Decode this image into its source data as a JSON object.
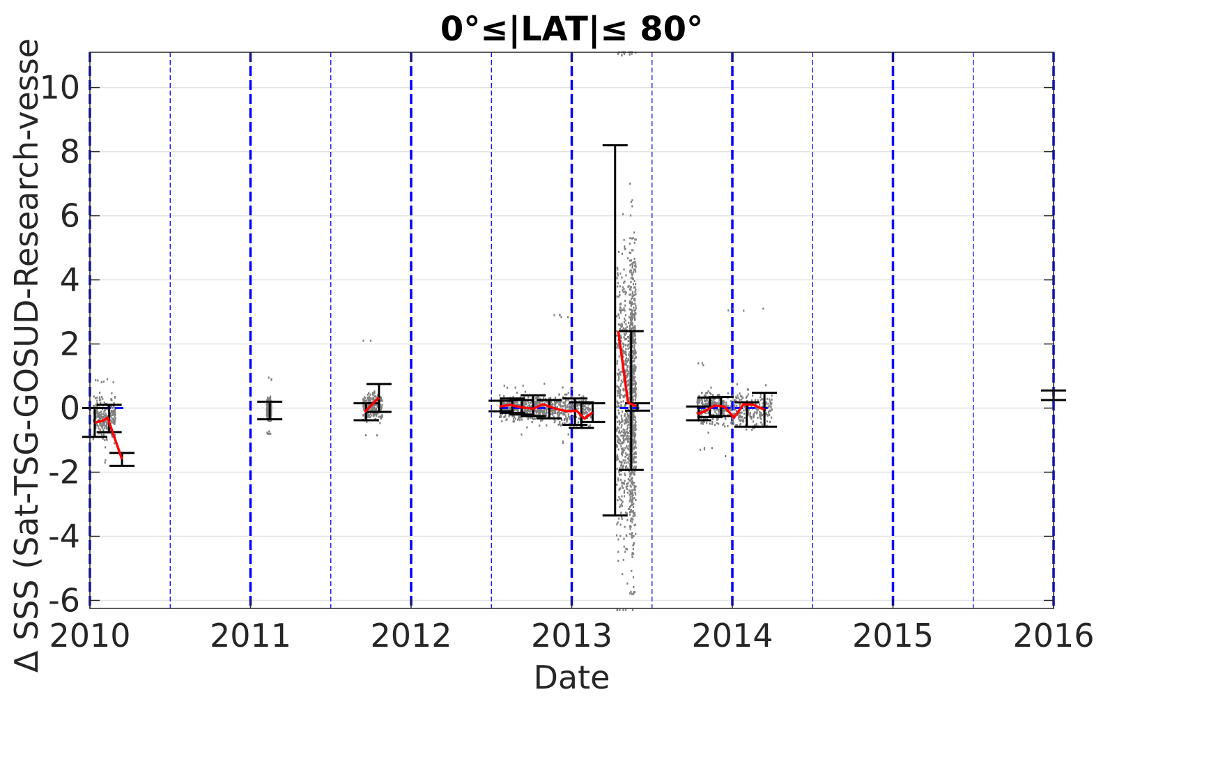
{
  "chart_data": {
    "type": "scatter",
    "title": "0°≤|LAT|≤ 80°",
    "xlabel": "Date",
    "ylabel": "Δ SSS (Sat-TSG-GOSUD-Research-vesse",
    "xlim": [
      2010,
      2016
    ],
    "ylim": [
      -6.25,
      11.1
    ],
    "x_ticks": [
      2010,
      2011,
      2012,
      2013,
      2014,
      2015,
      2016
    ],
    "x_tick_labels": [
      "2010",
      "2011",
      "2012",
      "2013",
      "2014",
      "2015",
      "2016"
    ],
    "y_ticks": [
      -6,
      -4,
      -2,
      0,
      2,
      4,
      6,
      8,
      10
    ],
    "y_tick_labels": [
      "-6",
      "-4",
      "-2",
      "0",
      "2",
      "4",
      "6",
      "8",
      "10"
    ],
    "grid": true,
    "colors": {
      "scatter": "#808080",
      "mean_line": "#ff0000",
      "error_bars": "#000000",
      "year_lines": "#0000ff",
      "grid": "#e3e3e3",
      "zero_line": "#0000ff"
    },
    "vertical_lines_major": [
      2010,
      2011,
      2012,
      2013,
      2014,
      2015,
      2016
    ],
    "vertical_lines_minor": [
      2010.5,
      2011.5,
      2012.5,
      2013.5,
      2014.5,
      2015.5
    ],
    "scatter_clusters": [
      {
        "x": [
          2010.02,
          2010.16
        ],
        "center": -0.3,
        "spread": 0.45,
        "min": -1.7,
        "max": 0.9
      },
      {
        "x": [
          2011.1,
          2011.13
        ],
        "center": -0.05,
        "spread": 0.25,
        "min": -0.8,
        "max": 0.95
      },
      {
        "x": [
          2011.7,
          2011.82
        ],
        "center": 0.05,
        "spread": 0.3,
        "min": -0.85,
        "max": 2.1
      },
      {
        "x": [
          2012.55,
          2012.7
        ],
        "center": 0.0,
        "spread": 0.25,
        "min": -0.9,
        "max": 0.7
      },
      {
        "x": [
          2012.7,
          2012.88
        ],
        "center": 0.0,
        "spread": 0.25,
        "min": -0.6,
        "max": 0.8
      },
      {
        "x": [
          2012.88,
          2013.12
        ],
        "center": -0.05,
        "spread": 0.35,
        "min": -1.1,
        "max": 2.9
      },
      {
        "x": [
          2013.28,
          2013.38
        ],
        "center": 0.3,
        "spread": 3.0,
        "min": -6.3,
        "max": 11.1
      },
      {
        "x": [
          2013.36,
          2013.4
        ],
        "center": 0.5,
        "spread": 3.2,
        "min": -5.8,
        "max": 11.1
      },
      {
        "x": [
          2013.78,
          2013.95
        ],
        "center": 0.0,
        "spread": 0.35,
        "min": -1.3,
        "max": 1.4
      },
      {
        "x": [
          2013.95,
          2014.25
        ],
        "center": -0.05,
        "spread": 0.4,
        "min": -1.5,
        "max": 3.1
      }
    ],
    "mean_series": {
      "x": [
        2010.03,
        2010.08,
        2010.11,
        2010.2,
        null,
        2011.71,
        2011.8,
        null,
        2012.55,
        2012.62,
        2012.68,
        2012.76,
        2012.82,
        2012.9,
        2012.97,
        2013.03,
        2013.08,
        2013.13,
        null,
        2013.29,
        2013.35,
        2013.4,
        null,
        2013.78,
        2013.82,
        2013.89,
        2013.95,
        2014.01,
        2014.07,
        2014.13,
        2014.2
      ],
      "y": [
        -0.45,
        -0.4,
        -0.3,
        -1.6,
        null,
        -0.12,
        0.33,
        null,
        0.05,
        0.1,
        0.03,
        -0.02,
        0.12,
        -0.02,
        -0.1,
        -0.08,
        -0.33,
        -0.13,
        null,
        2.4,
        0.18,
        0.06,
        null,
        -0.18,
        -0.12,
        0.08,
        0.05,
        -0.3,
        0.12,
        0.1,
        -0.05
      ]
    },
    "error_bars": [
      {
        "x": 2010.03,
        "low": -0.9,
        "high": 0.0
      },
      {
        "x": 2010.12,
        "low": -0.75,
        "high": 0.1
      },
      {
        "x": 2010.2,
        "low": -1.8,
        "high": -1.4
      },
      {
        "x": 2011.12,
        "low": -0.35,
        "high": 0.2
      },
      {
        "x": 2011.72,
        "low": -0.38,
        "high": 0.15
      },
      {
        "x": 2011.8,
        "low": -0.12,
        "high": 0.75
      },
      {
        "x": 2012.56,
        "low": -0.1,
        "high": 0.23
      },
      {
        "x": 2012.63,
        "low": -0.15,
        "high": 0.3
      },
      {
        "x": 2012.69,
        "low": -0.2,
        "high": 0.25
      },
      {
        "x": 2012.76,
        "low": -0.25,
        "high": 0.4
      },
      {
        "x": 2012.86,
        "low": -0.32,
        "high": 0.25
      },
      {
        "x": 2013.02,
        "low": -0.52,
        "high": 0.3
      },
      {
        "x": 2013.06,
        "low": -0.62,
        "high": 0.18
      },
      {
        "x": 2013.13,
        "low": -0.43,
        "high": 0.15
      },
      {
        "x": 2013.27,
        "low": -3.35,
        "high": 8.2
      },
      {
        "x": 2013.37,
        "low": -1.93,
        "high": 2.4
      },
      {
        "x": 2013.41,
        "low": -0.08,
        "high": 0.15
      },
      {
        "x": 2013.79,
        "low": -0.38,
        "high": 0.05
      },
      {
        "x": 2013.86,
        "low": -0.28,
        "high": 0.33
      },
      {
        "x": 2013.93,
        "low": -0.25,
        "high": 0.35
      },
      {
        "x": 2014.09,
        "low": -0.58,
        "high": 0.18
      },
      {
        "x": 2014.2,
        "low": -0.58,
        "high": 0.48
      },
      {
        "x": 2016.0,
        "low": 0.25,
        "high": 0.55
      }
    ],
    "zero_reference_segments": [
      {
        "x": [
          2010.0,
          2010.22
        ],
        "y": 0
      },
      {
        "x": [
          2012.55,
          2012.9
        ],
        "y": 0
      },
      {
        "x": [
          2013.3,
          2013.42
        ],
        "y": 0
      },
      {
        "x": [
          2013.78,
          2014.22
        ],
        "y": 0
      }
    ]
  }
}
